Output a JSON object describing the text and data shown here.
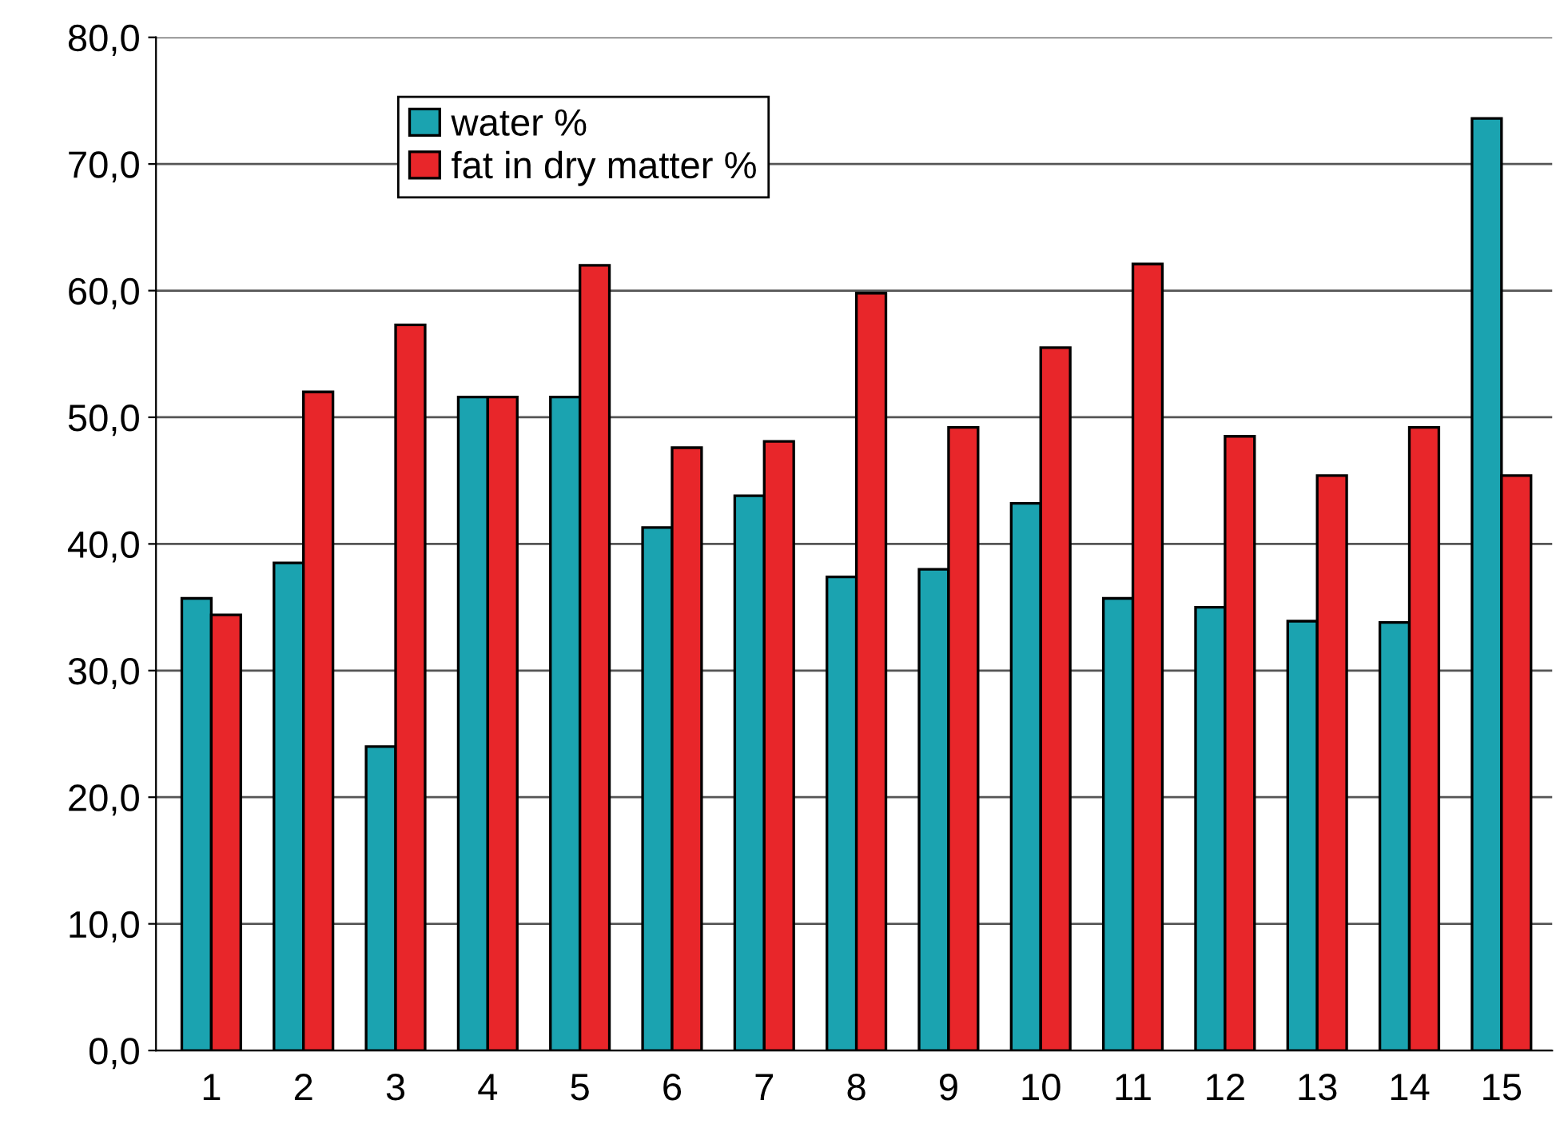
{
  "chart_data": {
    "type": "bar",
    "categories": [
      "1",
      "2",
      "3",
      "4",
      "5",
      "6",
      "7",
      "8",
      "9",
      "10",
      "11",
      "12",
      "13",
      "14",
      "15"
    ],
    "series": [
      {
        "name": "water %",
        "color": "#1ba3b0",
        "values": [
          35.7,
          38.5,
          24.0,
          51.6,
          51.6,
          41.3,
          43.8,
          37.4,
          38.0,
          43.2,
          35.7,
          35.0,
          33.9,
          33.8,
          73.6
        ]
      },
      {
        "name": "fat in dry matter %",
        "color": "#e8262a",
        "values": [
          34.4,
          52.0,
          57.3,
          51.6,
          62.0,
          47.6,
          48.1,
          59.8,
          49.2,
          55.5,
          62.1,
          48.5,
          45.4,
          49.2,
          45.4
        ]
      }
    ],
    "ylim": [
      0,
      80
    ],
    "yticks": [
      {
        "value": 0,
        "label": "0,0"
      },
      {
        "value": 10,
        "label": "10,0"
      },
      {
        "value": 20,
        "label": "20,0"
      },
      {
        "value": 30,
        "label": "30,0"
      },
      {
        "value": 40,
        "label": "40,0"
      },
      {
        "value": 50,
        "label": "50,0"
      },
      {
        "value": 60,
        "label": "60,0"
      },
      {
        "value": 70,
        "label": "70,0"
      },
      {
        "value": 80,
        "label": "80,0"
      }
    ],
    "grid": "y",
    "legend": "top left"
  }
}
